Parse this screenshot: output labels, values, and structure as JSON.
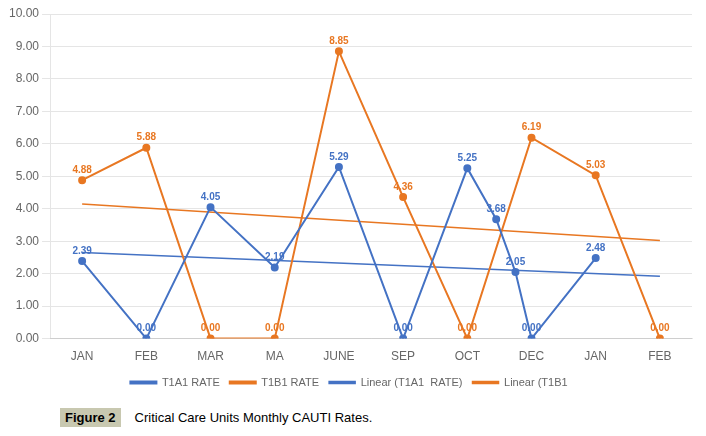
{
  "chart_data": {
    "type": "line",
    "xlim": [
      -0.5,
      9.5
    ],
    "xticks": [
      {
        "value": 0,
        "label": "JAN"
      },
      {
        "value": 1,
        "label": "FEB"
      },
      {
        "value": 2,
        "label": "MAR"
      },
      {
        "value": 3,
        "label": "MA"
      },
      {
        "value": 4,
        "label": "JUNE"
      },
      {
        "value": 5,
        "label": "SEP"
      },
      {
        "value": 6,
        "label": "OCT"
      },
      {
        "value": 7,
        "label": "DEC"
      },
      {
        "value": 8,
        "label": "JAN"
      },
      {
        "value": 9,
        "label": "FEB"
      }
    ],
    "ylim": [
      0.0,
      10.0
    ],
    "yticks": [
      {
        "value": 0.0,
        "label": "0.00"
      },
      {
        "value": 1.0,
        "label": "1.00"
      },
      {
        "value": 2.0,
        "label": "2.00"
      },
      {
        "value": 3.0,
        "label": "3.00"
      },
      {
        "value": 4.0,
        "label": "4.00"
      },
      {
        "value": 5.0,
        "label": "5.00"
      },
      {
        "value": 6.0,
        "label": "6.00"
      },
      {
        "value": 7.0,
        "label": "7.00"
      },
      {
        "value": 8.0,
        "label": "8.00"
      },
      {
        "value": 9.0,
        "label": "9.00"
      },
      {
        "value": 10.0,
        "label": "10.00"
      }
    ],
    "grid": "y",
    "legend": "bottom",
    "data_labels": true,
    "annotations": [
      "Figure 2",
      "Critical Care Units Monthly CAUTI Rates."
    ],
    "series": [
      {
        "name": "T1A1 RATE",
        "color": "#4472C4",
        "marker": "circle",
        "line_style": "solid",
        "x": [
          0,
          1,
          2,
          3,
          4,
          5,
          6,
          6.45,
          6.75,
          7,
          8,
          9
        ],
        "values": [
          2.39,
          0.0,
          4.05,
          2.19,
          5.29,
          0.0,
          5.25,
          3.68,
          2.05,
          0.0,
          2.48,
          null
        ],
        "value_labels": [
          "2.39",
          "0.00",
          "4.05",
          "2.19",
          "5.29",
          "0.00",
          "5.25",
          "3.68",
          "2.05",
          "0.00",
          "2.48",
          null
        ]
      },
      {
        "name": "T1B1 RATE",
        "color": "#E87722",
        "marker": "circle",
        "line_style": "solid",
        "x": [
          0,
          1,
          2,
          3,
          4,
          5,
          6,
          7,
          8,
          9
        ],
        "values": [
          4.88,
          5.88,
          0.0,
          0.0,
          8.85,
          4.36,
          0.0,
          6.19,
          5.03,
          0.0
        ],
        "value_labels": [
          "4.88",
          "5.88",
          "0.00",
          "0.00",
          "8.85",
          "4.36",
          "0.00",
          "6.19",
          "5.03",
          "0.00"
        ]
      },
      {
        "name": "Linear (T1A1  RATE)",
        "color": "#4472C4",
        "marker": "none",
        "line_style": "solid",
        "x": [
          0,
          9
        ],
        "values": [
          2.65,
          1.92
        ]
      },
      {
        "name": "Linear (T1B1",
        "color": "#E87722",
        "marker": "none",
        "line_style": "solid",
        "x": [
          0,
          9
        ],
        "values": [
          4.15,
          3.02
        ]
      }
    ]
  }
}
